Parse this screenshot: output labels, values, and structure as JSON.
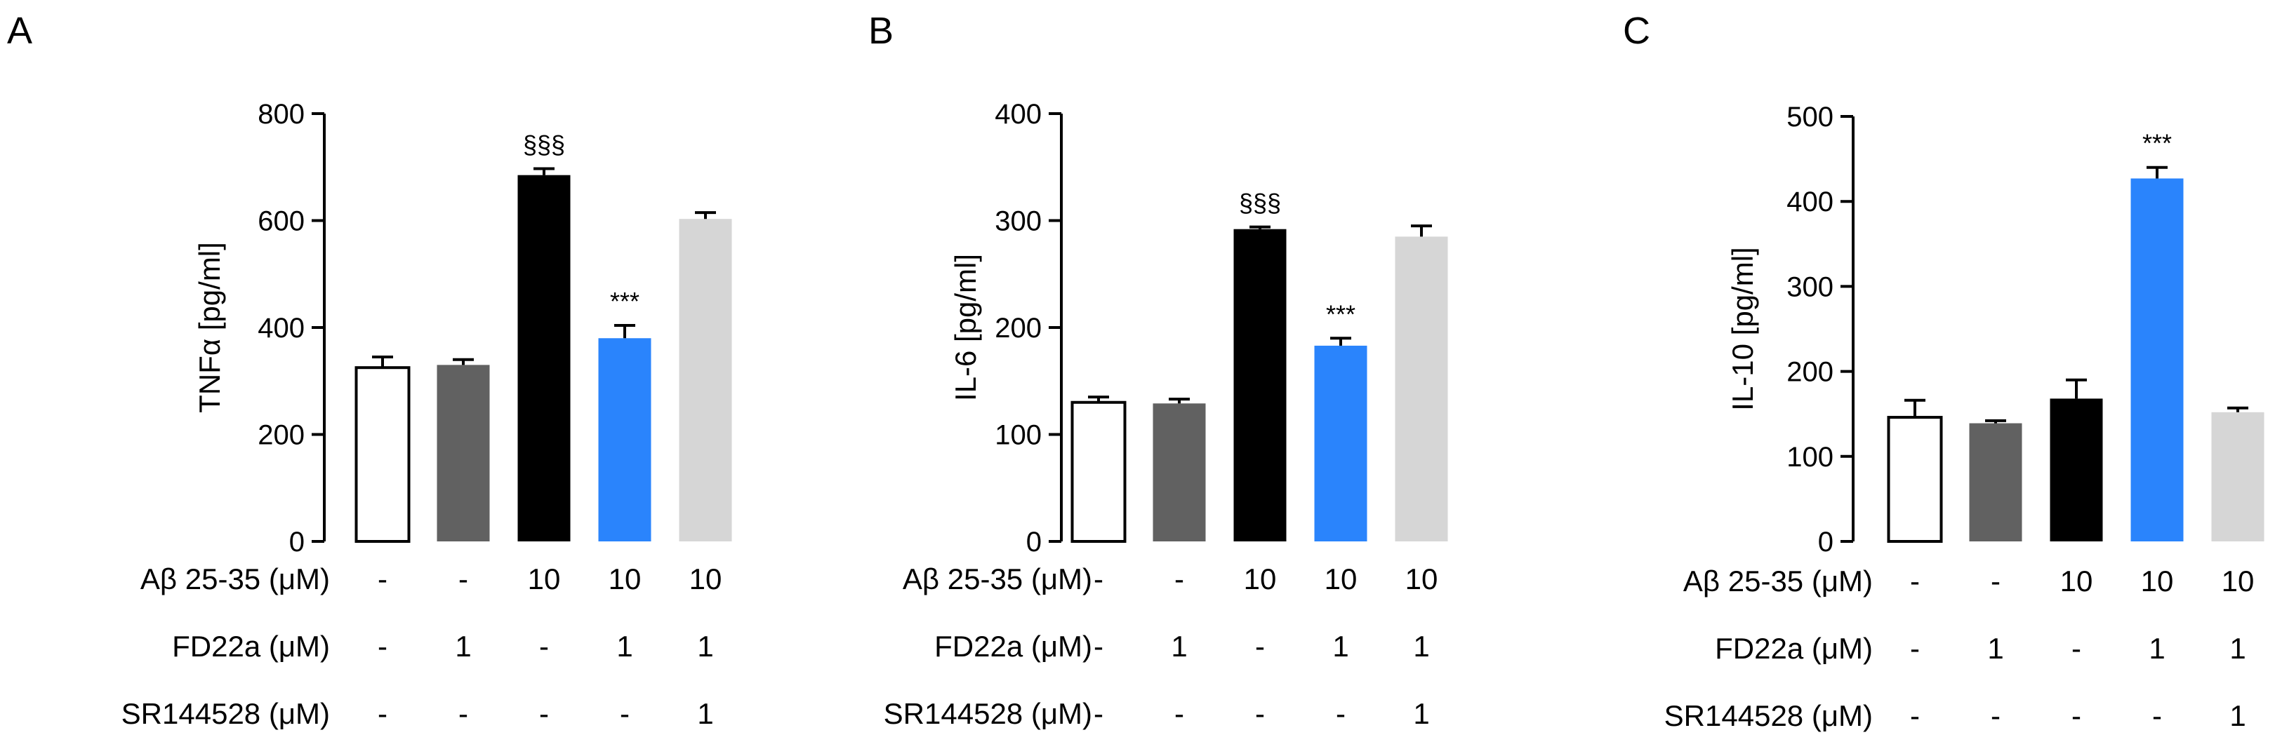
{
  "chart_data": [
    {
      "type": "bar",
      "panel": "A",
      "ylabel": "TNFα [pg/ml]",
      "ylim": [
        0,
        800
      ],
      "yticks": [
        0,
        200,
        400,
        600,
        800
      ],
      "grid": false,
      "categories": [
        "1",
        "2",
        "3",
        "4",
        "5"
      ],
      "values": [
        325,
        330,
        685,
        380,
        603
      ],
      "errors": [
        20,
        10,
        12,
        24,
        12
      ],
      "colors": [
        "#ffffff",
        "#616161",
        "#000000",
        "#2a84fc",
        "#d6d6d6"
      ],
      "annotations": [
        "",
        "",
        "§§§",
        "***",
        ""
      ],
      "conditions": [
        {
          "label": "Aβ 25-35 (μM)",
          "values": [
            "-",
            "-",
            "10",
            "10",
            "10"
          ]
        },
        {
          "label": "FD22a (μM)",
          "values": [
            "-",
            "1",
            "-",
            "1",
            "1"
          ]
        },
        {
          "label": "SR144528 (μM)",
          "values": [
            "-",
            "-",
            "-",
            "-",
            "1"
          ]
        }
      ]
    },
    {
      "type": "bar",
      "panel": "B",
      "ylabel": "IL-6 [pg/ml]",
      "ylim": [
        0,
        400
      ],
      "yticks": [
        0,
        100,
        200,
        300,
        400
      ],
      "grid": false,
      "categories": [
        "1",
        "2",
        "3",
        "4",
        "5"
      ],
      "values": [
        130,
        129,
        292,
        183,
        285
      ],
      "errors": [
        5,
        4,
        2,
        7,
        10
      ],
      "colors": [
        "#ffffff",
        "#616161",
        "#000000",
        "#2a84fc",
        "#d6d6d6"
      ],
      "annotations": [
        "",
        "",
        "§§§",
        "***",
        ""
      ],
      "conditions": [
        {
          "label": "Aβ 25-35 (μM)",
          "values": [
            "-",
            "-",
            "10",
            "10",
            "10"
          ]
        },
        {
          "label": "FD22a (μM)",
          "values": [
            "-",
            "1",
            "-",
            "1",
            "1"
          ]
        },
        {
          "label": "SR144528 (μM)",
          "values": [
            "-",
            "-",
            "-",
            "-",
            "1"
          ]
        }
      ]
    },
    {
      "type": "bar",
      "panel": "C",
      "ylabel": "IL-10 [pg/ml]",
      "ylim": [
        0,
        500
      ],
      "yticks": [
        0,
        100,
        200,
        300,
        400,
        500
      ],
      "grid": false,
      "categories": [
        "1",
        "2",
        "3",
        "4",
        "5"
      ],
      "values": [
        146,
        139,
        168,
        427,
        152
      ],
      "errors": [
        20,
        3,
        22,
        13,
        5
      ],
      "colors": [
        "#ffffff",
        "#616161",
        "#000000",
        "#2a84fc",
        "#d6d6d6"
      ],
      "annotations": [
        "",
        "",
        "",
        "***",
        ""
      ],
      "conditions": [
        {
          "label": "Aβ 25-35 (μM)",
          "values": [
            "-",
            "-",
            "10",
            "10",
            "10"
          ]
        },
        {
          "label": "FD22a (μM)",
          "values": [
            "-",
            "1",
            "-",
            "1",
            "1"
          ]
        },
        {
          "label": "SR144528 (μM)",
          "values": [
            "-",
            "-",
            "-",
            "-",
            "1"
          ]
        }
      ]
    }
  ]
}
